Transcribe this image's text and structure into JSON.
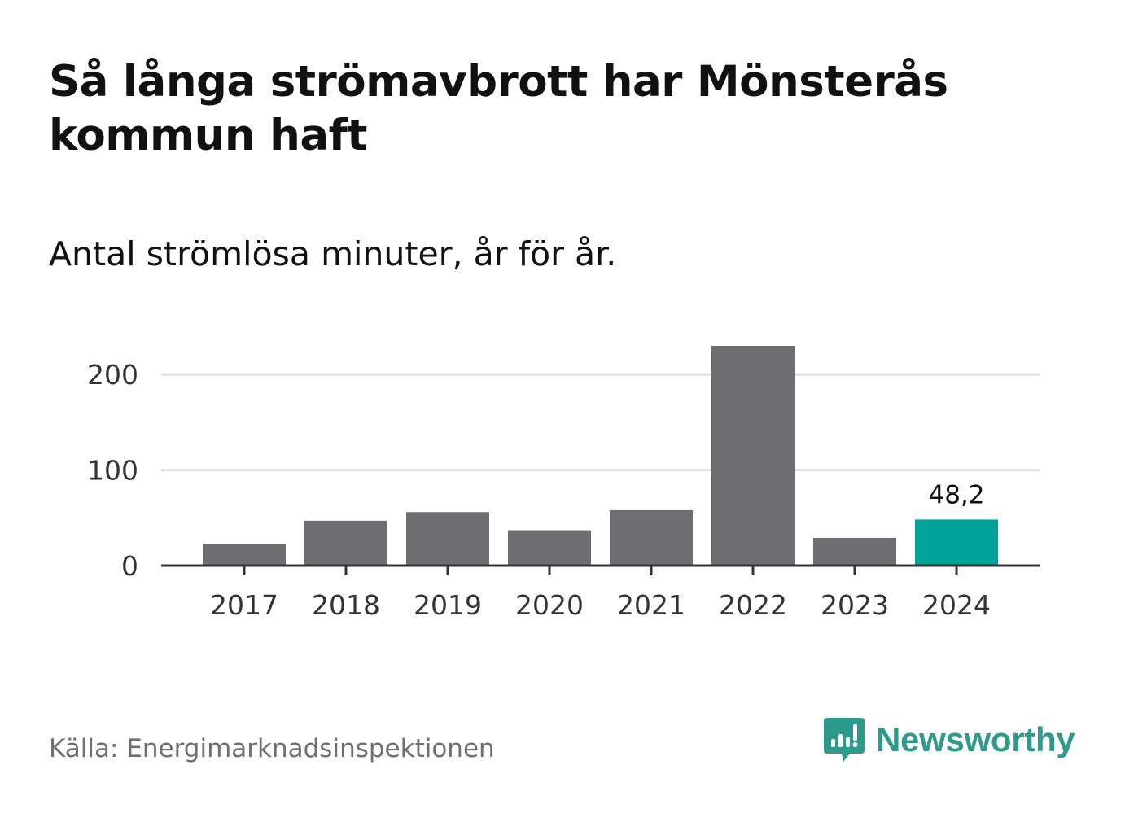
{
  "title": "Så långa strömavbrott har Mönsterås kommun haft",
  "subtitle": "Antal strömlösa minuter, år för år.",
  "source": "Källa: Energimarknadsinspektionen",
  "brand": {
    "name": "Newsworthy",
    "icon": "newsworthy-chart-bubble-icon",
    "color": "#2e9a8c"
  },
  "colors": {
    "bar": "#6e6d72",
    "highlight": "#00a398",
    "grid": "#dddddd",
    "axis": "#333333",
    "text": "#333333"
  },
  "chart_data": {
    "type": "bar",
    "title": "Så långa strömavbrott har Mönsterås kommun haft",
    "subtitle": "Antal strömlösa minuter, år för år.",
    "xlabel": "",
    "ylabel": "",
    "categories": [
      "2017",
      "2018",
      "2019",
      "2020",
      "2021",
      "2022",
      "2023",
      "2024"
    ],
    "values": [
      23,
      47,
      56,
      37,
      58,
      230,
      29,
      48.2
    ],
    "ylim": [
      0,
      230
    ],
    "yticks": [
      0,
      100,
      200
    ],
    "ytick_labels": [
      "0",
      "100",
      "200"
    ],
    "grid": true,
    "highlight_index": 7,
    "annotations": [
      {
        "category": "2024",
        "label": "48,2"
      }
    ]
  }
}
